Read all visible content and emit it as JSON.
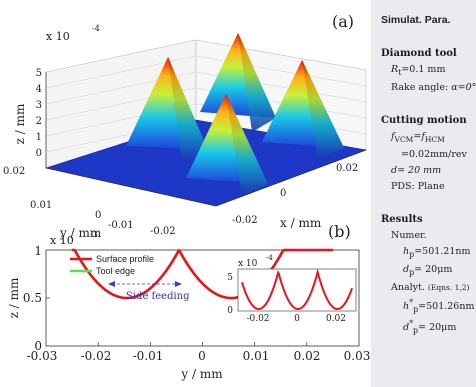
{
  "panel_a": {
    "label": "(a)",
    "exponent_base": "x 10",
    "exponent_power": "-4",
    "z_axis_label": "z / mm",
    "y_axis_label": "y / mm",
    "x_axis_label": "x / mm",
    "z_ticks": [
      "5",
      "4",
      "3",
      "2",
      "1",
      "0"
    ],
    "y_ticks": [
      "0.02",
      "0.01",
      "0",
      "-0.01",
      "-0.02"
    ],
    "x_ticks": [
      "0.02",
      "0",
      "-0.02"
    ]
  },
  "panel_b": {
    "label": "(b)",
    "exponent_base": "x 10",
    "exponent_power": "-3",
    "annotation": "Side feeding",
    "legend": [
      "Surface profile",
      "Tool edge"
    ],
    "inset_exponent_base": "x 10",
    "inset_exponent_power": "-4",
    "inset_y_ticks": [
      "5",
      "0"
    ],
    "inset_x_ticks": [
      "-0.02",
      "0",
      "0.02"
    ]
  },
  "chart_data": [
    {
      "type": "area",
      "panel": "(a)",
      "xlabel": "x / mm",
      "ylabel": "y / mm",
      "zlabel": "z / mm",
      "z_scale": "x 10^-4",
      "xlim": [
        -0.02,
        0.02
      ],
      "ylim": [
        -0.02,
        0.02
      ],
      "zlim": [
        0,
        5
      ],
      "peak_height": 5,
      "peaks_xy": [
        [
          -0.0125,
          -0.0125
        ],
        [
          0.0125,
          -0.0125
        ],
        [
          -0.0125,
          0.0125
        ],
        [
          0.0125,
          0.0125
        ]
      ]
    },
    {
      "type": "line",
      "panel": "(b)",
      "xlabel": "y / mm",
      "ylabel": "z / mm",
      "y_scale": "x 10^-3",
      "xlim": [
        -0.03,
        0.03
      ],
      "ylim": [
        0,
        1
      ],
      "x_ticks": [
        "-0.03",
        "-0.02",
        "-0.01",
        "0",
        "0.01",
        "0.02",
        "0.03"
      ],
      "y_ticks": [
        "0",
        "0.5",
        "1"
      ],
      "series": [
        {
          "name": "Surface profile",
          "color": "#e8141c",
          "centers": [
            -0.0145,
            0.0055
          ],
          "x_range": [
            -0.025,
            0.025
          ],
          "r": 0.1,
          "z0": 0.5
        },
        {
          "name": "Tool edge",
          "color": "#55e050",
          "centers": [
            -0.0145,
            0.0055
          ],
          "x_range": [
            -0.0255,
            0.0165
          ],
          "r": 0.1,
          "z0": 0.5
        }
      ],
      "inset": {
        "x_ticks": [
          "-0.02",
          "0",
          "0.02"
        ],
        "y_ticks": [
          "0",
          "5"
        ],
        "y_scale": "x 10^-4",
        "peaks": [
          -0.0095,
          0.0105
        ]
      }
    }
  ],
  "side": {
    "heading": "Simulat. Para.",
    "diamond_tool": "Diamond tool",
    "radius_sym": "R",
    "radius_sub": "t",
    "radius_val": "=0.1 mm",
    "rake_label": "Rake angle: ",
    "rake_val": "α=0°",
    "cutting_motion": "Cutting motion",
    "feed_lhs": "f",
    "feed_lhs_sub": "VCM",
    "feed_eq": "=f",
    "feed_rhs_sub": "HCM",
    "feed_val": "=0.02mm/rev",
    "depth": "d= 20 mm",
    "pds": "PDS: Plane",
    "results": "Results",
    "numer": "Numer.",
    "h_sym": "h",
    "h_sub": "p",
    "h_val": "=501.21nm",
    "d_sym": "d",
    "d_sub": "p",
    "d_val": "= 20μm",
    "analyt": "Analyt.",
    "eqns": "(Eqns. 1,2)",
    "h2_sym": "h",
    "h2_sub": "p",
    "h2_val": "=501.26nm",
    "d2_sym": "d",
    "d2_sub": "p",
    "d2_val": "= 20μm"
  }
}
